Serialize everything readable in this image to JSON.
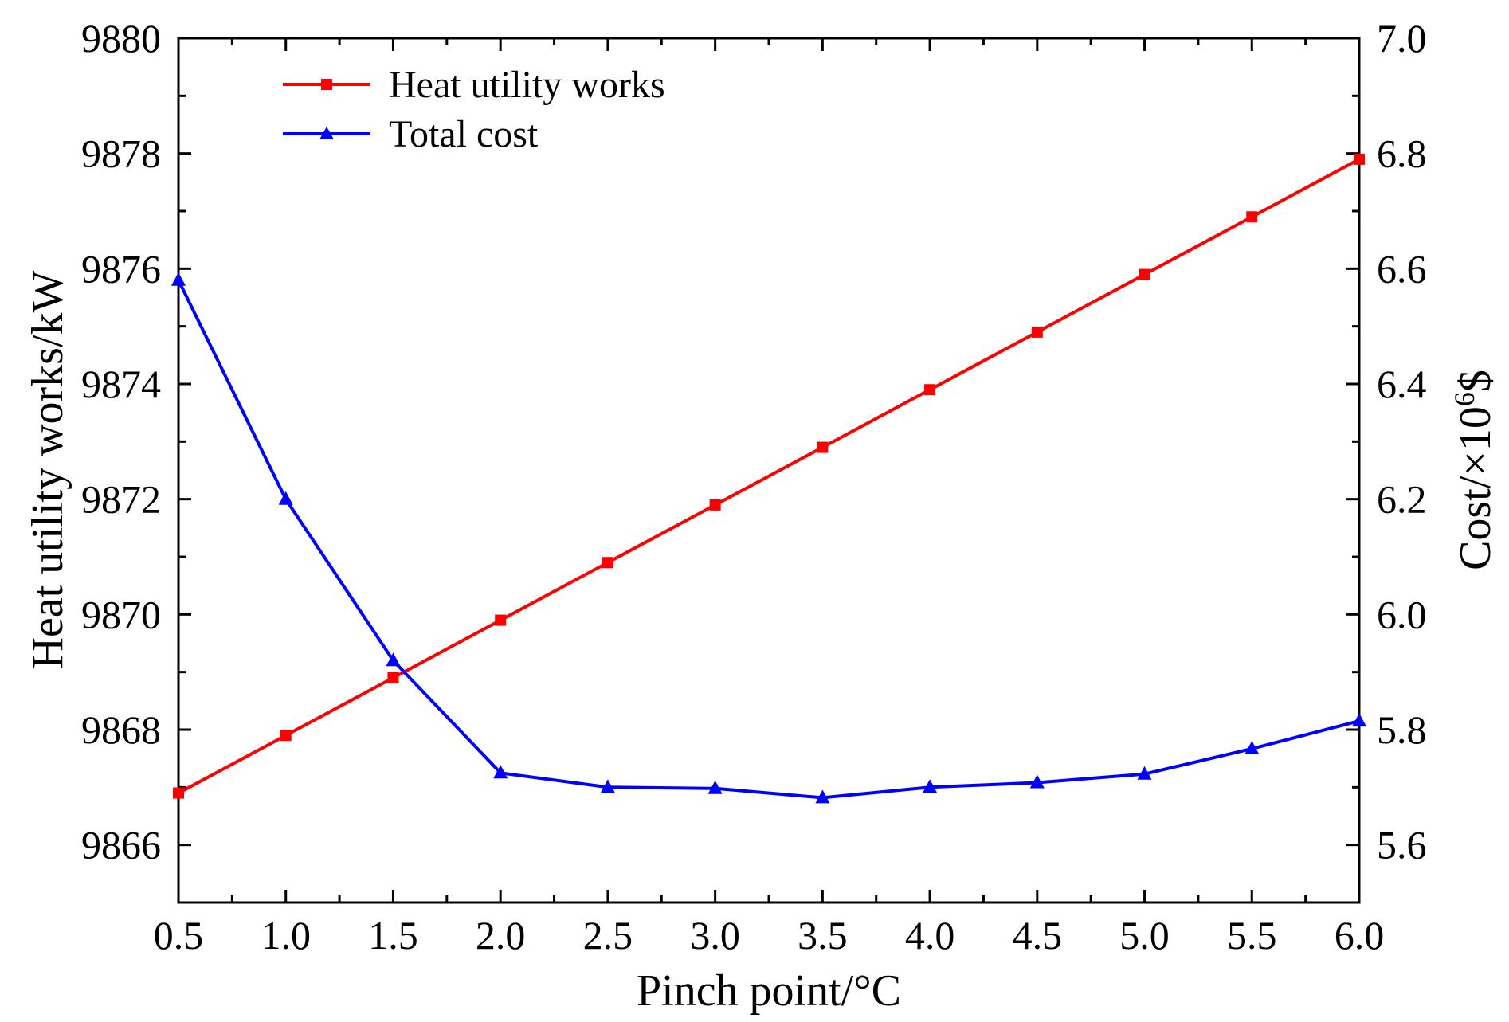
{
  "chart_data": {
    "type": "line",
    "x": [
      0.5,
      1.0,
      1.5,
      2.0,
      2.5,
      3.0,
      3.5,
      4.0,
      4.5,
      5.0,
      5.5,
      6.0
    ],
    "xlabel": "Pinch point/°C",
    "xlim": [
      0.5,
      6.0
    ],
    "xticks": [
      "0.5",
      "1.0",
      "1.5",
      "2.0",
      "2.5",
      "3.0",
      "3.5",
      "4.0",
      "4.5",
      "5.0",
      "5.5",
      "6.0"
    ],
    "ylabel_left": "Heat utility works/kW",
    "ylim_left": [
      9865,
      9880
    ],
    "yticks_left": [
      "9866",
      "9868",
      "9870",
      "9872",
      "9874",
      "9876",
      "9878",
      "9880"
    ],
    "ylabel_right_base": "Cost/×10",
    "ylabel_right_exp": "6",
    "ylabel_right_unit": "$",
    "ylim_right": [
      5.5,
      7.0
    ],
    "yticks_right": [
      "5.6",
      "5.8",
      "6.0",
      "6.2",
      "6.4",
      "6.6",
      "6.8",
      "7.0"
    ],
    "legend_position": "top-left",
    "series": [
      {
        "name": "Heat utility works",
        "axis": "left",
        "color": "#ff0000",
        "marker": "square",
        "values": [
          9866.9,
          9867.9,
          9868.9,
          9869.9,
          9870.9,
          9871.9,
          9872.9,
          9873.9,
          9874.9,
          9875.9,
          9876.9,
          9877.9
        ]
      },
      {
        "name": "Total cost",
        "axis": "right",
        "color": "#0000ff",
        "marker": "triangle",
        "values": [
          6.58,
          6.2,
          5.92,
          5.725,
          5.7,
          5.698,
          5.682,
          5.7,
          5.708,
          5.723,
          5.767,
          5.815
        ]
      }
    ]
  }
}
